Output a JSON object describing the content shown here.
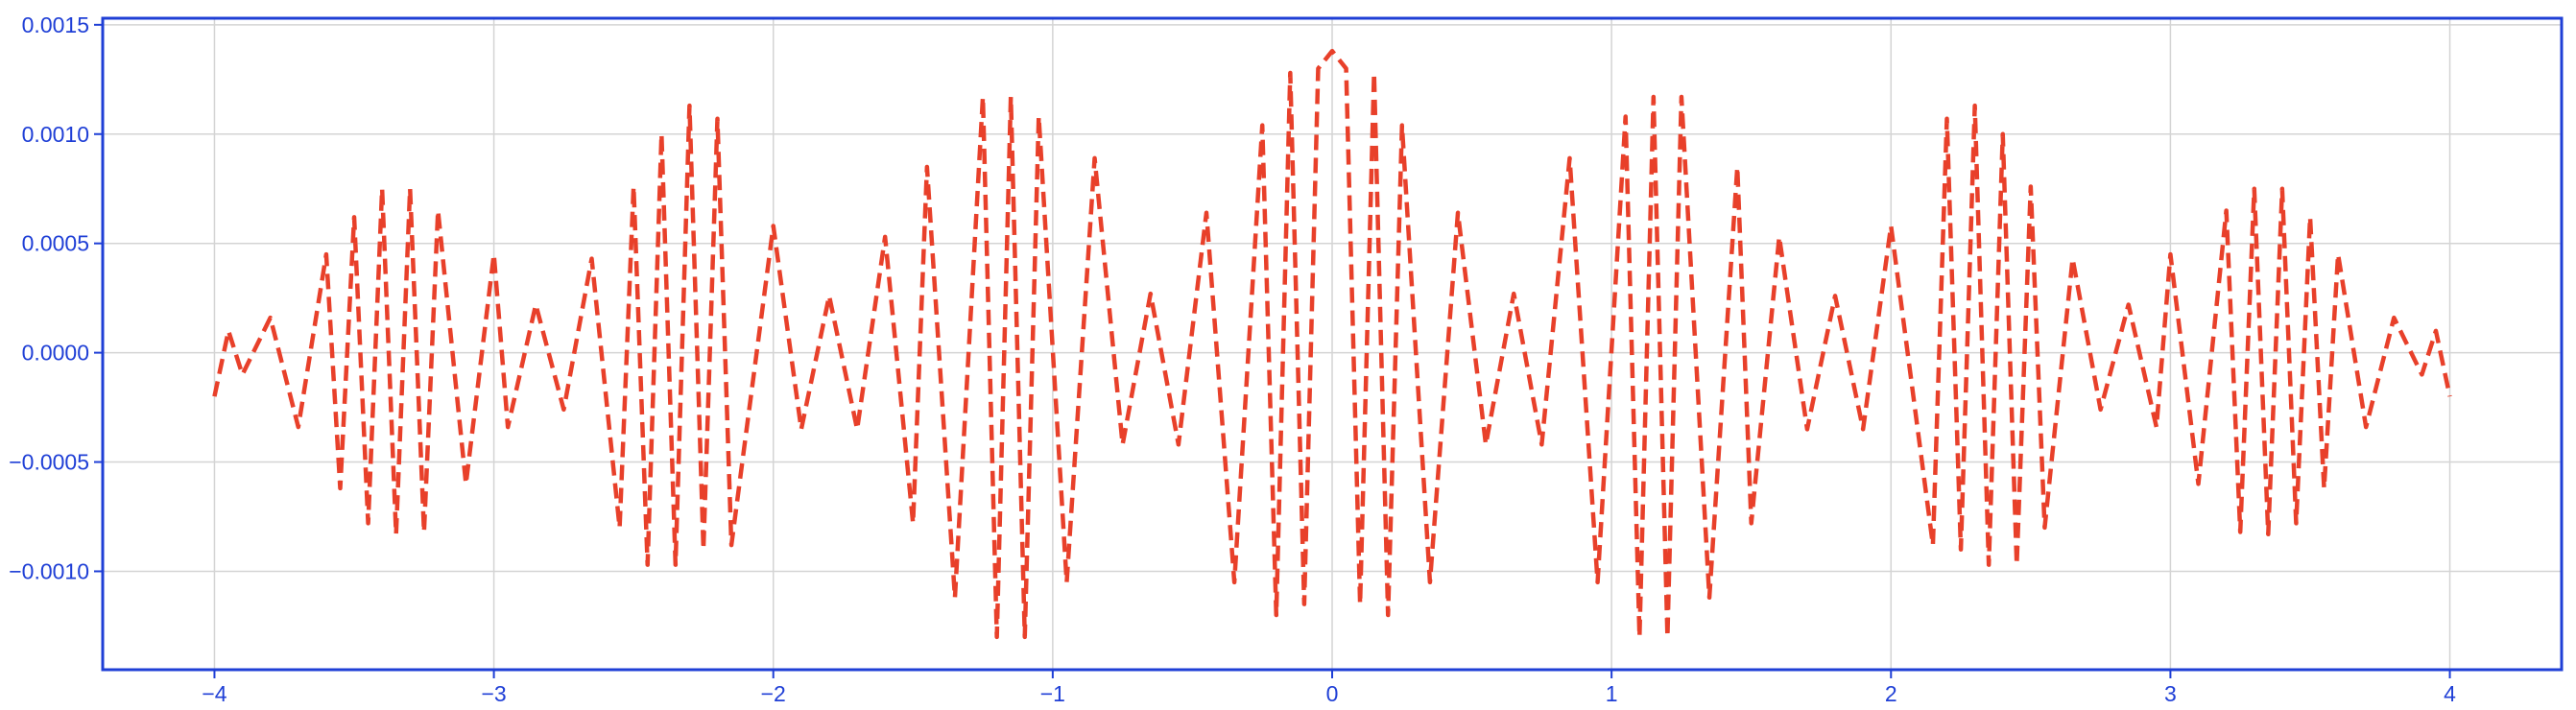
{
  "colors": {
    "axes": "#1f3fd6",
    "grid": "#d4d4d4",
    "line": "#e8402a",
    "background": "#ffffff"
  },
  "chart_data": {
    "type": "line",
    "title": "",
    "xlabel": "",
    "ylabel": "",
    "xlim": [
      -4.4,
      4.4
    ],
    "ylim": [
      -0.00145,
      0.00153
    ],
    "grid": true,
    "line_style": "dashed",
    "x_ticks": [
      -4,
      -3,
      -2,
      -1,
      0,
      1,
      2,
      3,
      4
    ],
    "x_tick_labels": [
      "−4",
      "−3",
      "−2",
      "−1",
      "0",
      "1",
      "2",
      "3",
      "4"
    ],
    "y_ticks": [
      -0.001,
      -0.0005,
      0.0,
      0.0005,
      0.001,
      0.0015
    ],
    "y_tick_labels": [
      "−0.0010",
      "−0.0005",
      "0.0000",
      "0.0005",
      "0.0010",
      "0.0015"
    ],
    "series": [
      {
        "x_range": [
          -4,
          4
        ],
        "approx_function": "y = sum of 4 equal cosines (freq 0, 6/(2π), 12/(2π), 18/(2π) … beating) scaled so peak ≈ 0.00138 at x=0",
        "points": [
          [
            -4.0,
            -0.0002
          ],
          [
            -3.95,
            0.0001
          ],
          [
            -3.9,
            -0.0001
          ],
          [
            -3.8,
            0.00016
          ],
          [
            -3.7,
            -0.00034
          ],
          [
            -3.6,
            0.00045
          ],
          [
            -3.55,
            -0.00062
          ],
          [
            -3.5,
            0.00062
          ],
          [
            -3.45,
            -0.00078
          ],
          [
            -3.4,
            0.00075
          ],
          [
            -3.35,
            -0.00083
          ],
          [
            -3.3,
            0.00075
          ],
          [
            -3.25,
            -0.00082
          ],
          [
            -3.2,
            0.00065
          ],
          [
            -3.1,
            -0.0006
          ],
          [
            -3.0,
            0.00045
          ],
          [
            -2.95,
            -0.00034
          ],
          [
            -2.85,
            0.00022
          ],
          [
            -2.75,
            -0.00026
          ],
          [
            -2.65,
            0.00043
          ],
          [
            -2.55,
            -0.0008
          ],
          [
            -2.5,
            0.00076
          ],
          [
            -2.45,
            -0.00097
          ],
          [
            -2.4,
            0.001
          ],
          [
            -2.35,
            -0.00097
          ],
          [
            -2.3,
            0.00113
          ],
          [
            -2.25,
            -0.0009
          ],
          [
            -2.2,
            0.00107
          ],
          [
            -2.15,
            -0.00088
          ],
          [
            -2.0,
            0.00058
          ],
          [
            -1.9,
            -0.00035
          ],
          [
            -1.8,
            0.00026
          ],
          [
            -1.7,
            -0.00035
          ],
          [
            -1.6,
            0.00053
          ],
          [
            -1.5,
            -0.00078
          ],
          [
            -1.45,
            0.00085
          ],
          [
            -1.35,
            -0.00112
          ],
          [
            -1.25,
            0.00117
          ],
          [
            -1.2,
            -0.0013
          ],
          [
            -1.15,
            0.00117
          ],
          [
            -1.1,
            -0.0013
          ],
          [
            -1.05,
            0.00108
          ],
          [
            -0.95,
            -0.00105
          ],
          [
            -0.85,
            0.00089
          ],
          [
            -0.75,
            -0.00042
          ],
          [
            -0.65,
            0.00027
          ],
          [
            -0.55,
            -0.00042
          ],
          [
            -0.45,
            0.00064
          ],
          [
            -0.35,
            -0.00105
          ],
          [
            -0.25,
            0.00104
          ],
          [
            -0.2,
            -0.0012
          ],
          [
            -0.15,
            0.00128
          ],
          [
            -0.1,
            -0.00115
          ],
          [
            -0.05,
            0.0013
          ],
          [
            0.0,
            0.00138
          ],
          [
            0.05,
            0.0013
          ],
          [
            0.1,
            -0.00115
          ],
          [
            0.15,
            0.00128
          ],
          [
            0.2,
            -0.0012
          ],
          [
            0.25,
            0.00104
          ],
          [
            0.35,
            -0.00105
          ],
          [
            0.45,
            0.00064
          ],
          [
            0.55,
            -0.00042
          ],
          [
            0.65,
            0.00027
          ],
          [
            0.75,
            -0.00042
          ],
          [
            0.85,
            0.00089
          ],
          [
            0.95,
            -0.00105
          ],
          [
            1.05,
            0.00108
          ],
          [
            1.1,
            -0.0013
          ],
          [
            1.15,
            0.00117
          ],
          [
            1.2,
            -0.0013
          ],
          [
            1.25,
            0.00117
          ],
          [
            1.35,
            -0.00112
          ],
          [
            1.45,
            0.00085
          ],
          [
            1.5,
            -0.00078
          ],
          [
            1.6,
            0.00053
          ],
          [
            1.7,
            -0.00035
          ],
          [
            1.8,
            0.00026
          ],
          [
            1.9,
            -0.00035
          ],
          [
            2.0,
            0.00058
          ],
          [
            2.15,
            -0.00088
          ],
          [
            2.2,
            0.00107
          ],
          [
            2.25,
            -0.0009
          ],
          [
            2.3,
            0.00113
          ],
          [
            2.35,
            -0.00097
          ],
          [
            2.4,
            0.001
          ],
          [
            2.45,
            -0.00097
          ],
          [
            2.5,
            0.00076
          ],
          [
            2.55,
            -0.0008
          ],
          [
            2.65,
            0.00043
          ],
          [
            2.75,
            -0.00026
          ],
          [
            2.85,
            0.00022
          ],
          [
            2.95,
            -0.00034
          ],
          [
            3.0,
            0.00045
          ],
          [
            3.1,
            -0.0006
          ],
          [
            3.2,
            0.00065
          ],
          [
            3.25,
            -0.00082
          ],
          [
            3.3,
            0.00075
          ],
          [
            3.35,
            -0.00083
          ],
          [
            3.4,
            0.00075
          ],
          [
            3.45,
            -0.00078
          ],
          [
            3.5,
            0.00062
          ],
          [
            3.55,
            -0.00062
          ],
          [
            3.6,
            0.00045
          ],
          [
            3.7,
            -0.00034
          ],
          [
            3.8,
            0.00016
          ],
          [
            3.9,
            -0.0001
          ],
          [
            3.95,
            0.0001
          ],
          [
            4.0,
            -0.0002
          ]
        ]
      }
    ]
  }
}
